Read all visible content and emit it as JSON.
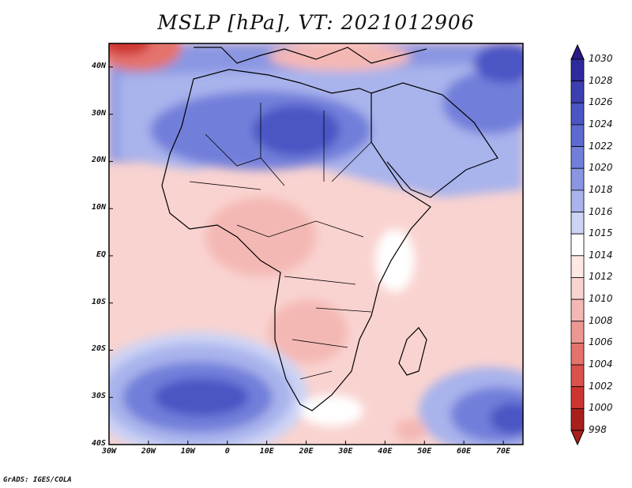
{
  "title": "MSLP [hPa], VT: 2021012906",
  "credit": "GrADS: IGES/COLA",
  "map": {
    "lon_range": [
      -30,
      75
    ],
    "lat_range": [
      -40,
      45
    ],
    "lat_labels": [
      "40N",
      "30N",
      "20N",
      "10N",
      "EQ",
      "10S",
      "20S",
      "30S",
      "40S"
    ],
    "lon_labels": [
      "30W",
      "20W",
      "10W",
      "0",
      "10E",
      "20E",
      "30E",
      "40E",
      "50E",
      "60E",
      "70E"
    ]
  },
  "colorbar": {
    "labels": [
      "1030",
      "1028",
      "1026",
      "1024",
      "1022",
      "1020",
      "1018",
      "1016",
      "1015",
      "1014",
      "1012",
      "1010",
      "1008",
      "1006",
      "1004",
      "1002",
      "1000",
      "998"
    ],
    "colors": {
      "max": "#2a1a8a",
      "band_1028": "#2e2a9e",
      "band_1026": "#3b3fb0",
      "band_1024": "#4c55c4",
      "band_1022": "#5d6ad0",
      "band_1020": "#727fda",
      "band_1018": "#8a96e2",
      "band_1016": "#a9b3ec",
      "band_1015": "#ccd3f5",
      "band_1014": "#ffffff",
      "band_1012": "#fde8e6",
      "band_1010": "#f9d3d0",
      "band_1008": "#f4b8b4",
      "band_1006": "#ec9792",
      "band_1004": "#e4736d",
      "band_1002": "#db514b",
      "band_1000": "#cf3530",
      "min": "#a81f1c"
    }
  }
}
